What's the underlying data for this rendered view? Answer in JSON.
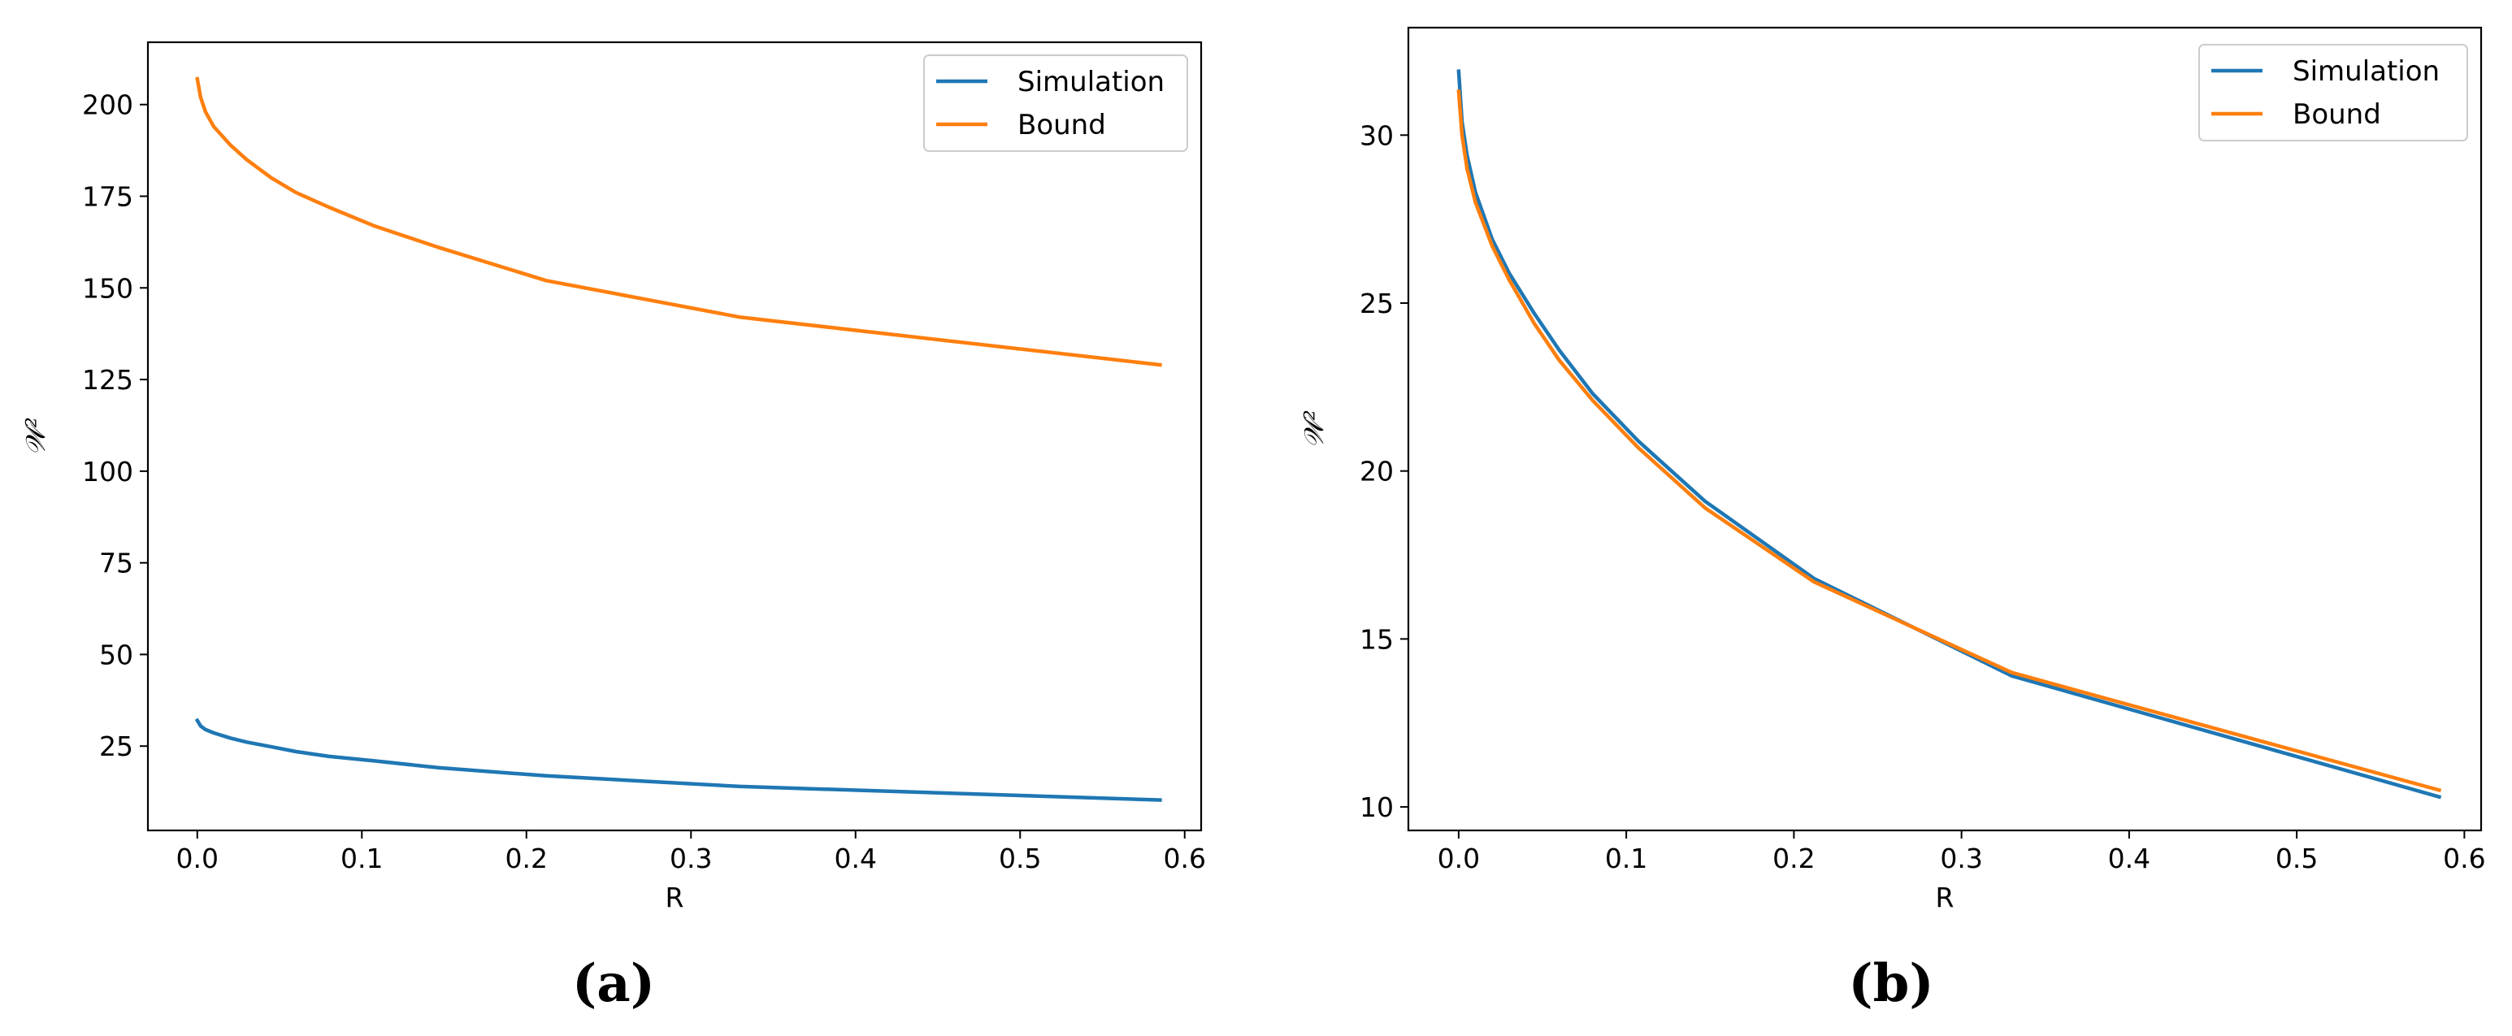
{
  "colors": {
    "simulation": "#1f77b4",
    "bound": "#ff7f0e"
  },
  "chart_data": [
    {
      "type": "line",
      "panel_label": "(a)",
      "xlabel": "R",
      "ylabel": "𝒲²",
      "xlim": [
        -0.03,
        0.61
      ],
      "ylim": [
        2,
        217
      ],
      "xticks": [
        0.0,
        0.1,
        0.2,
        0.3,
        0.4,
        0.5,
        0.6
      ],
      "xtick_labels": [
        "0.0",
        "0.1",
        "0.2",
        "0.3",
        "0.4",
        "0.5",
        "0.6"
      ],
      "yticks": [
        25,
        50,
        75,
        100,
        125,
        150,
        175,
        200
      ],
      "ytick_labels": [
        "25",
        "50",
        "75",
        "100",
        "125",
        "150",
        "175",
        "200"
      ],
      "legend": "top-right",
      "series": [
        {
          "name": "Simulation",
          "color": "#1f77b4",
          "x": [
            0.0,
            0.002,
            0.005,
            0.01,
            0.02,
            0.03,
            0.045,
            0.06,
            0.08,
            0.107,
            0.147,
            0.212,
            0.33,
            0.585
          ],
          "y": [
            32,
            30.5,
            29.5,
            28.6,
            27.2,
            26.1,
            24.8,
            23.5,
            22.2,
            21.0,
            19.1,
            16.9,
            14.0,
            10.3
          ]
        },
        {
          "name": "Bound",
          "color": "#ff7f0e",
          "x": [
            0.0,
            0.002,
            0.005,
            0.01,
            0.02,
            0.03,
            0.045,
            0.06,
            0.08,
            0.107,
            0.147,
            0.212,
            0.33,
            0.585
          ],
          "y": [
            207,
            202,
            198,
            194,
            189,
            185,
            180,
            176,
            172,
            167,
            161,
            152,
            142,
            129
          ]
        }
      ]
    },
    {
      "type": "line",
      "panel_label": "(b)",
      "xlabel": "R",
      "ylabel": "𝒲²",
      "xlim": [
        -0.03,
        0.61
      ],
      "ylim": [
        9.3,
        33.2
      ],
      "xticks": [
        0.0,
        0.1,
        0.2,
        0.3,
        0.4,
        0.5,
        0.6
      ],
      "xtick_labels": [
        "0.0",
        "0.1",
        "0.2",
        "0.3",
        "0.4",
        "0.5",
        "0.6"
      ],
      "yticks": [
        10,
        15,
        20,
        25,
        30
      ],
      "ytick_labels": [
        "10",
        "15",
        "20",
        "25",
        "30"
      ],
      "legend": "top-right",
      "series": [
        {
          "name": "Simulation",
          "color": "#1f77b4",
          "x": [
            0.0,
            0.002,
            0.005,
            0.01,
            0.02,
            0.03,
            0.045,
            0.06,
            0.08,
            0.107,
            0.147,
            0.212,
            0.33,
            0.585
          ],
          "y": [
            31.9,
            30.4,
            29.4,
            28.3,
            26.9,
            25.9,
            24.7,
            23.6,
            22.3,
            20.9,
            19.1,
            16.8,
            13.9,
            10.3
          ]
        },
        {
          "name": "Bound",
          "color": "#ff7f0e",
          "x": [
            0.0,
            0.002,
            0.005,
            0.01,
            0.02,
            0.03,
            0.045,
            0.06,
            0.08,
            0.107,
            0.147,
            0.212,
            0.33,
            0.585
          ],
          "y": [
            31.3,
            30.0,
            29.0,
            28.0,
            26.7,
            25.7,
            24.4,
            23.3,
            22.1,
            20.7,
            18.9,
            16.7,
            14.0,
            10.5
          ]
        }
      ]
    }
  ]
}
